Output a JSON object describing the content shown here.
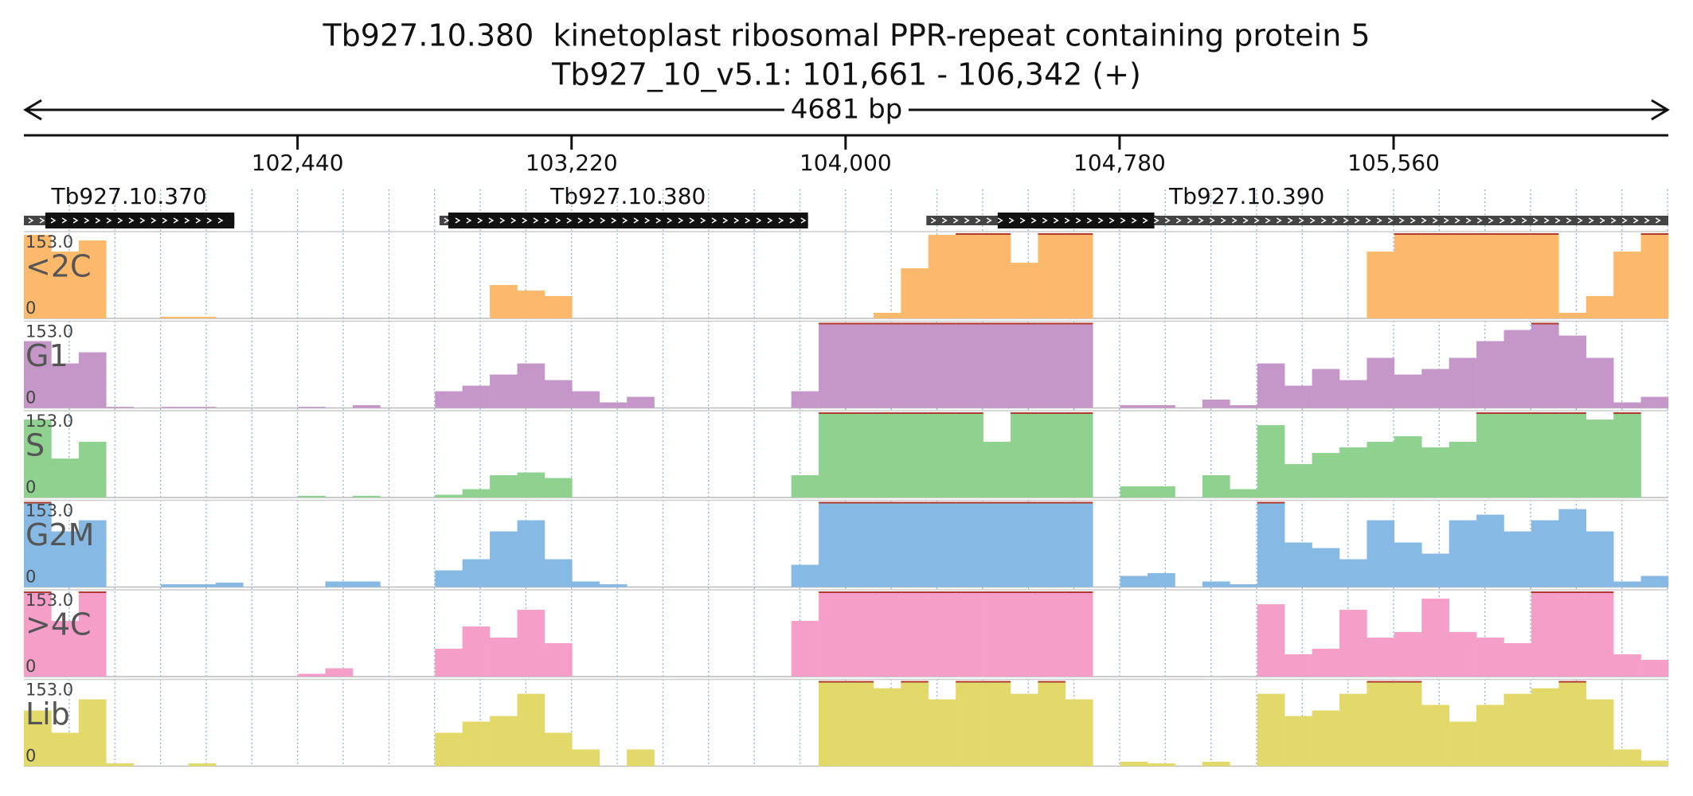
{
  "title": "Tb927.10.380  kinetoplast ribosomal PPR-repeat containing protein 5",
  "subtitle": "Tb927_10_v5.1: 101,661 - 106,342 (+)",
  "length_label": "4681 bp",
  "chart_data": {
    "type": "bar",
    "xlim": [
      101661,
      106342
    ],
    "xticks": [
      {
        "value": 102440,
        "label": "102,440"
      },
      {
        "value": 103220,
        "label": "103,220"
      },
      {
        "value": 104000,
        "label": "104,000"
      },
      {
        "value": 104780,
        "label": "104,780"
      },
      {
        "value": 105560,
        "label": "105,560"
      }
    ],
    "ylim": [
      0,
      153
    ],
    "yticks": [
      0,
      {
        "value": 153,
        "label": "153.0"
      }
    ],
    "grid": true,
    "genes": [
      {
        "label": "Tb927.10.370",
        "start": 101661,
        "end": 102260,
        "cds_start": 101722,
        "cds_end": 102260
      },
      {
        "label": "Tb927.10.380",
        "start": 102844,
        "end": 103893,
        "cds_start": 102869,
        "cds_end": 103893
      },
      {
        "label": "Tb927.10.390",
        "start": 104230,
        "end": 106342,
        "cds_start": 104433,
        "cds_end": 104879
      }
    ],
    "series": [
      {
        "name": "<2C",
        "color": "#fdb96b",
        "values": [
          150,
          120,
          140,
          0,
          0,
          3,
          3,
          0,
          0,
          0,
          0,
          0,
          0,
          0,
          0,
          0,
          0,
          60,
          50,
          40,
          0,
          0,
          0,
          0,
          0,
          0,
          0,
          0,
          0,
          0,
          0,
          10,
          90,
          150,
          153,
          153,
          100,
          153,
          153,
          0,
          0,
          0,
          0,
          0,
          0,
          0,
          0,
          0,
          0,
          120,
          153,
          153,
          153,
          153,
          153,
          153,
          10,
          40,
          120,
          153
        ]
      },
      {
        "name": "G1",
        "color": "#c497c8",
        "values": [
          120,
          80,
          100,
          2,
          0,
          2,
          2,
          0,
          0,
          0,
          2,
          0,
          5,
          0,
          0,
          30,
          40,
          60,
          80,
          50,
          30,
          10,
          20,
          0,
          0,
          0,
          0,
          0,
          30,
          153,
          153,
          153,
          153,
          153,
          153,
          153,
          153,
          153,
          153,
          0,
          5,
          5,
          0,
          15,
          5,
          80,
          40,
          70,
          50,
          90,
          60,
          70,
          90,
          120,
          140,
          153,
          130,
          90,
          10,
          20
        ]
      },
      {
        "name": "S",
        "color": "#8fd18f",
        "values": [
          140,
          70,
          100,
          0,
          0,
          0,
          0,
          0,
          0,
          0,
          3,
          0,
          3,
          0,
          0,
          5,
          15,
          40,
          45,
          35,
          0,
          0,
          0,
          0,
          0,
          0,
          0,
          0,
          40,
          153,
          153,
          153,
          153,
          153,
          153,
          100,
          153,
          153,
          153,
          0,
          20,
          20,
          0,
          40,
          15,
          130,
          60,
          80,
          90,
          100,
          110,
          90,
          100,
          153,
          153,
          153,
          153,
          140,
          153,
          0
        ]
      },
      {
        "name": "G2M",
        "color": "#86b9e3",
        "values": [
          153,
          100,
          120,
          0,
          0,
          5,
          5,
          8,
          0,
          0,
          0,
          10,
          10,
          0,
          0,
          30,
          50,
          100,
          120,
          50,
          10,
          5,
          0,
          0,
          0,
          0,
          0,
          0,
          40,
          153,
          153,
          153,
          153,
          153,
          153,
          153,
          153,
          153,
          153,
          0,
          20,
          25,
          0,
          10,
          5,
          153,
          80,
          70,
          50,
          120,
          80,
          60,
          120,
          130,
          100,
          120,
          140,
          100,
          10,
          20
        ]
      },
      {
        "name": ">4C",
        "color": "#f49ec8",
        "values": [
          153,
          100,
          153,
          0,
          0,
          0,
          0,
          0,
          0,
          0,
          5,
          15,
          0,
          0,
          0,
          50,
          90,
          70,
          120,
          60,
          0,
          0,
          0,
          0,
          0,
          0,
          0,
          0,
          100,
          153,
          153,
          153,
          153,
          153,
          153,
          153,
          153,
          153,
          153,
          0,
          0,
          0,
          0,
          0,
          0,
          130,
          40,
          50,
          120,
          70,
          80,
          140,
          80,
          70,
          60,
          153,
          153,
          153,
          40,
          30
        ]
      },
      {
        "name": "Lib",
        "color": "#e3d96b",
        "values": [
          100,
          60,
          120,
          5,
          0,
          0,
          5,
          0,
          0,
          0,
          0,
          0,
          0,
          0,
          0,
          60,
          80,
          90,
          130,
          60,
          30,
          0,
          30,
          0,
          0,
          0,
          0,
          0,
          0,
          153,
          153,
          140,
          153,
          120,
          153,
          153,
          130,
          153,
          120,
          0,
          8,
          5,
          0,
          8,
          0,
          130,
          90,
          100,
          130,
          153,
          153,
          110,
          80,
          110,
          130,
          140,
          153,
          120,
          30,
          10
        ]
      }
    ]
  }
}
